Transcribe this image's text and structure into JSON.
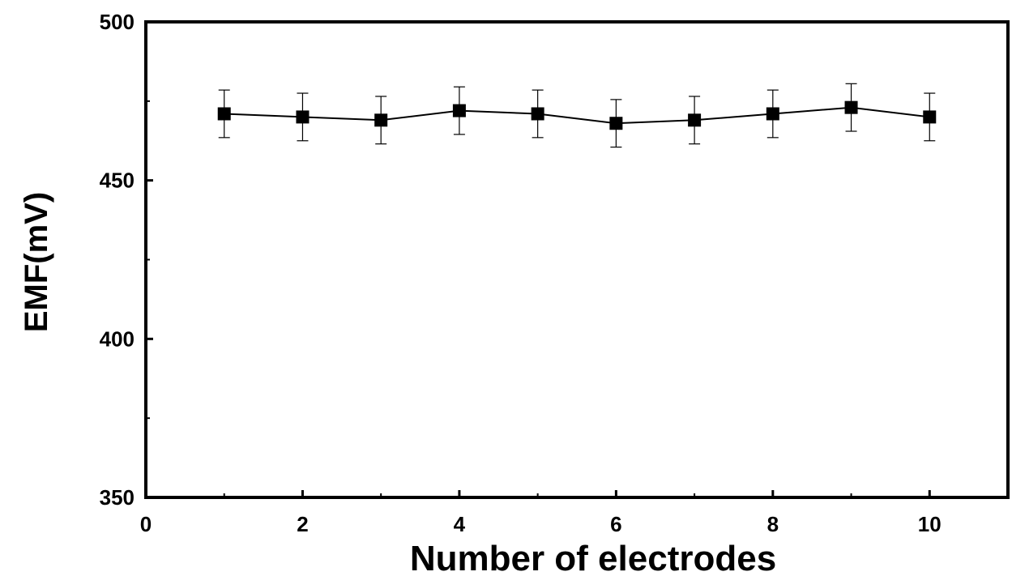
{
  "chart_data": {
    "type": "scatter",
    "title": "",
    "xlabel": "Number of electrodes",
    "ylabel": "EMF(mV)",
    "xlim": [
      0,
      11
    ],
    "ylim": [
      350,
      500
    ],
    "x_ticks": [
      0,
      2,
      4,
      6,
      8,
      10
    ],
    "y_ticks": [
      350,
      400,
      450,
      500
    ],
    "grid": false,
    "legend": "none",
    "marker": "square",
    "line": true,
    "series": [
      {
        "x": [
          1,
          2,
          3,
          4,
          5,
          6,
          7,
          8,
          9,
          10
        ],
        "y": [
          471,
          470,
          469,
          472,
          471,
          468,
          469,
          471,
          473,
          470
        ],
        "error": [
          7.5,
          7.5,
          7.5,
          7.5,
          7.5,
          7.5,
          7.5,
          7.5,
          7.5,
          7.5
        ]
      }
    ],
    "colors": {
      "line": "#000000",
      "marker": "#000000"
    }
  }
}
